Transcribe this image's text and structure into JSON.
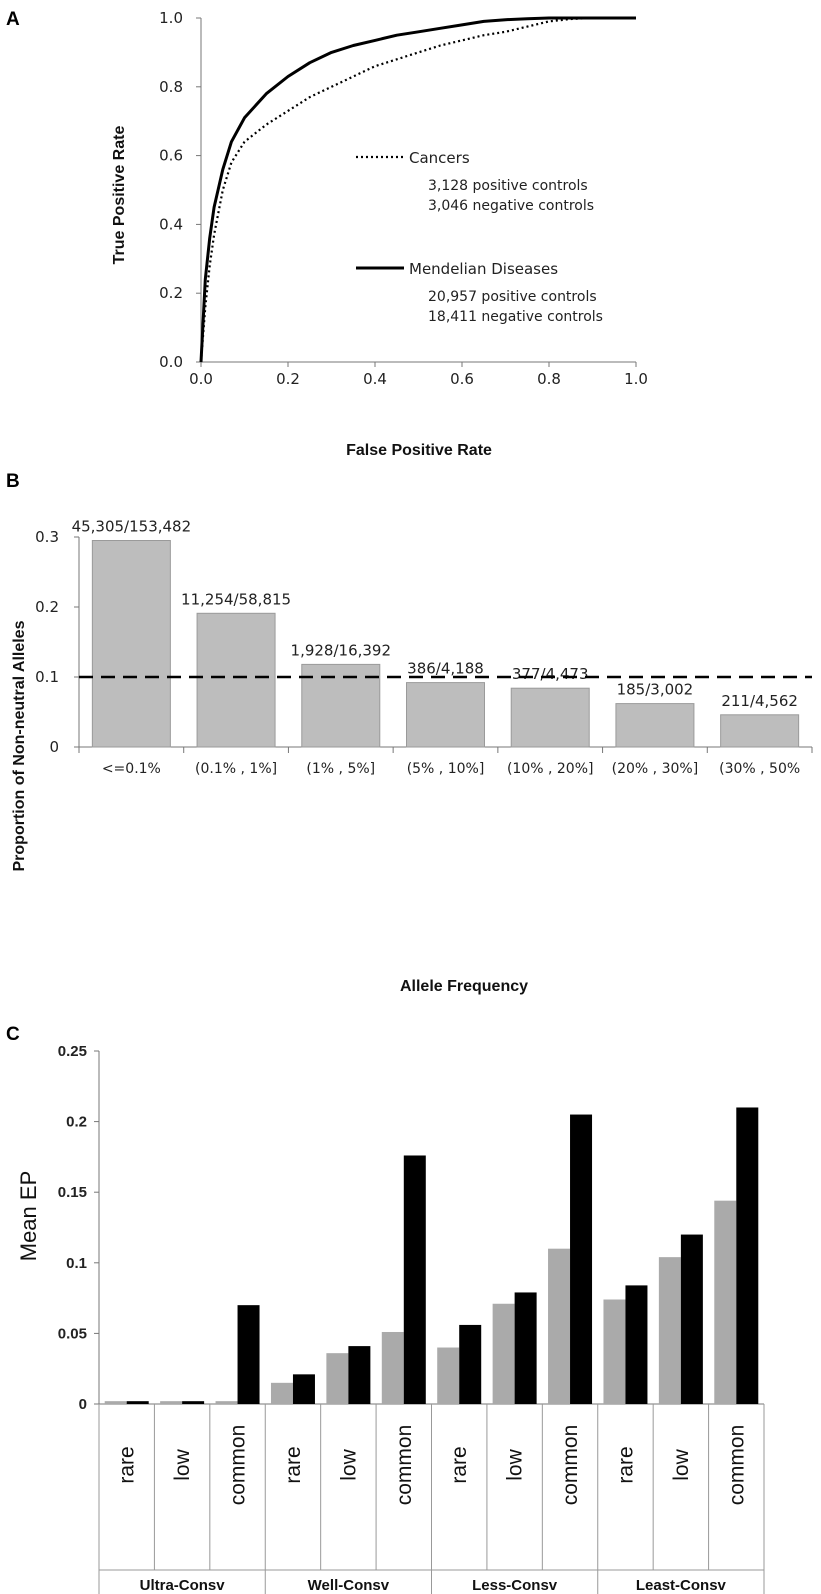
{
  "panels": {
    "a": {
      "letter": "A"
    },
    "b": {
      "letter": "B"
    },
    "c": {
      "letter": "C"
    }
  },
  "chart_data": [
    {
      "type": "line",
      "xlabel": "False Positive Rate",
      "ylabel": "True Positive Rate",
      "xlim": [
        0,
        1
      ],
      "ylim": [
        0,
        1
      ],
      "xticks": [
        "0.0",
        "0.2",
        "0.4",
        "0.6",
        "0.8",
        "1.0"
      ],
      "yticks": [
        "0.0",
        "0.2",
        "0.4",
        "0.6",
        "0.8",
        "1.0"
      ],
      "legend_placement": "center-right",
      "series": [
        {
          "name": "Cancers",
          "style": "dotted",
          "notes": [
            "3,128 positive controls",
            "3,046 negative controls"
          ],
          "x": [
            0,
            0.01,
            0.02,
            0.03,
            0.05,
            0.07,
            0.1,
            0.15,
            0.2,
            0.25,
            0.3,
            0.35,
            0.4,
            0.45,
            0.5,
            0.55,
            0.6,
            0.65,
            0.7,
            0.75,
            0.8,
            0.85,
            0.9,
            0.95,
            1.0
          ],
          "y": [
            0,
            0.16,
            0.28,
            0.37,
            0.5,
            0.58,
            0.64,
            0.69,
            0.73,
            0.77,
            0.8,
            0.83,
            0.86,
            0.88,
            0.9,
            0.92,
            0.935,
            0.95,
            0.96,
            0.975,
            0.99,
            0.997,
            1.0,
            1.0,
            1.0
          ]
        },
        {
          "name": "Mendelian Diseases",
          "style": "solid",
          "notes": [
            "20,957 positive controls",
            "18,411 negative controls"
          ],
          "x": [
            0,
            0.01,
            0.02,
            0.03,
            0.05,
            0.07,
            0.1,
            0.15,
            0.2,
            0.25,
            0.3,
            0.35,
            0.4,
            0.45,
            0.5,
            0.55,
            0.6,
            0.65,
            0.7,
            0.75,
            0.8,
            0.85,
            0.9,
            0.95,
            1.0
          ],
          "y": [
            0,
            0.24,
            0.36,
            0.45,
            0.56,
            0.64,
            0.71,
            0.78,
            0.83,
            0.87,
            0.9,
            0.92,
            0.935,
            0.95,
            0.96,
            0.97,
            0.98,
            0.99,
            0.995,
            0.998,
            1.0,
            1.0,
            1.0,
            1.0,
            1.0
          ]
        }
      ]
    },
    {
      "type": "bar",
      "xlabel": "Allele Frequency",
      "ylabel": "Proportion of Non-neutral Alleles",
      "ylim": [
        0,
        0.3
      ],
      "yticks": [
        "0",
        "0.1",
        "0.2",
        "0.3"
      ],
      "categories": [
        "<=0.1%",
        "(0.1% , 1%]",
        "(1% , 5%]",
        "(5% , 10%]",
        "(10% , 20%]",
        "(20% , 30%]",
        "(30% , 50%"
      ],
      "values": [
        0.295,
        0.191,
        0.118,
        0.092,
        0.084,
        0.062,
        0.046
      ],
      "data_labels": [
        "45,305/153,482",
        "11,254/58,815",
        "1,928/16,392",
        "386/4,188",
        "377/4,473",
        "185/3,002",
        "211/4,562"
      ],
      "reference_line": {
        "y": 0.1,
        "style": "dashed"
      },
      "bar_color": "#bdbdbd"
    },
    {
      "type": "bar",
      "ylabel": "Mean  EP",
      "ylim": [
        0,
        0.25
      ],
      "yticks": [
        "0",
        "0.05",
        "0.1",
        "0.15",
        "0.2",
        "0.25"
      ],
      "groups": [
        "Ultra-Consv",
        "Well-Consv",
        "Less-Consv",
        "Least-Consv"
      ],
      "subcategories": [
        "rare",
        "low",
        "common"
      ],
      "series": [
        {
          "color": "#aaaaaa",
          "values": [
            0.002,
            0.002,
            0.002,
            0.015,
            0.036,
            0.051,
            0.04,
            0.071,
            0.11,
            0.074,
            0.104,
            0.144
          ]
        },
        {
          "color": "#000000",
          "values": [
            0.002,
            0.002,
            0.07,
            0.021,
            0.041,
            0.176,
            0.056,
            0.079,
            0.205,
            0.084,
            0.12,
            0.21
          ]
        }
      ]
    }
  ]
}
